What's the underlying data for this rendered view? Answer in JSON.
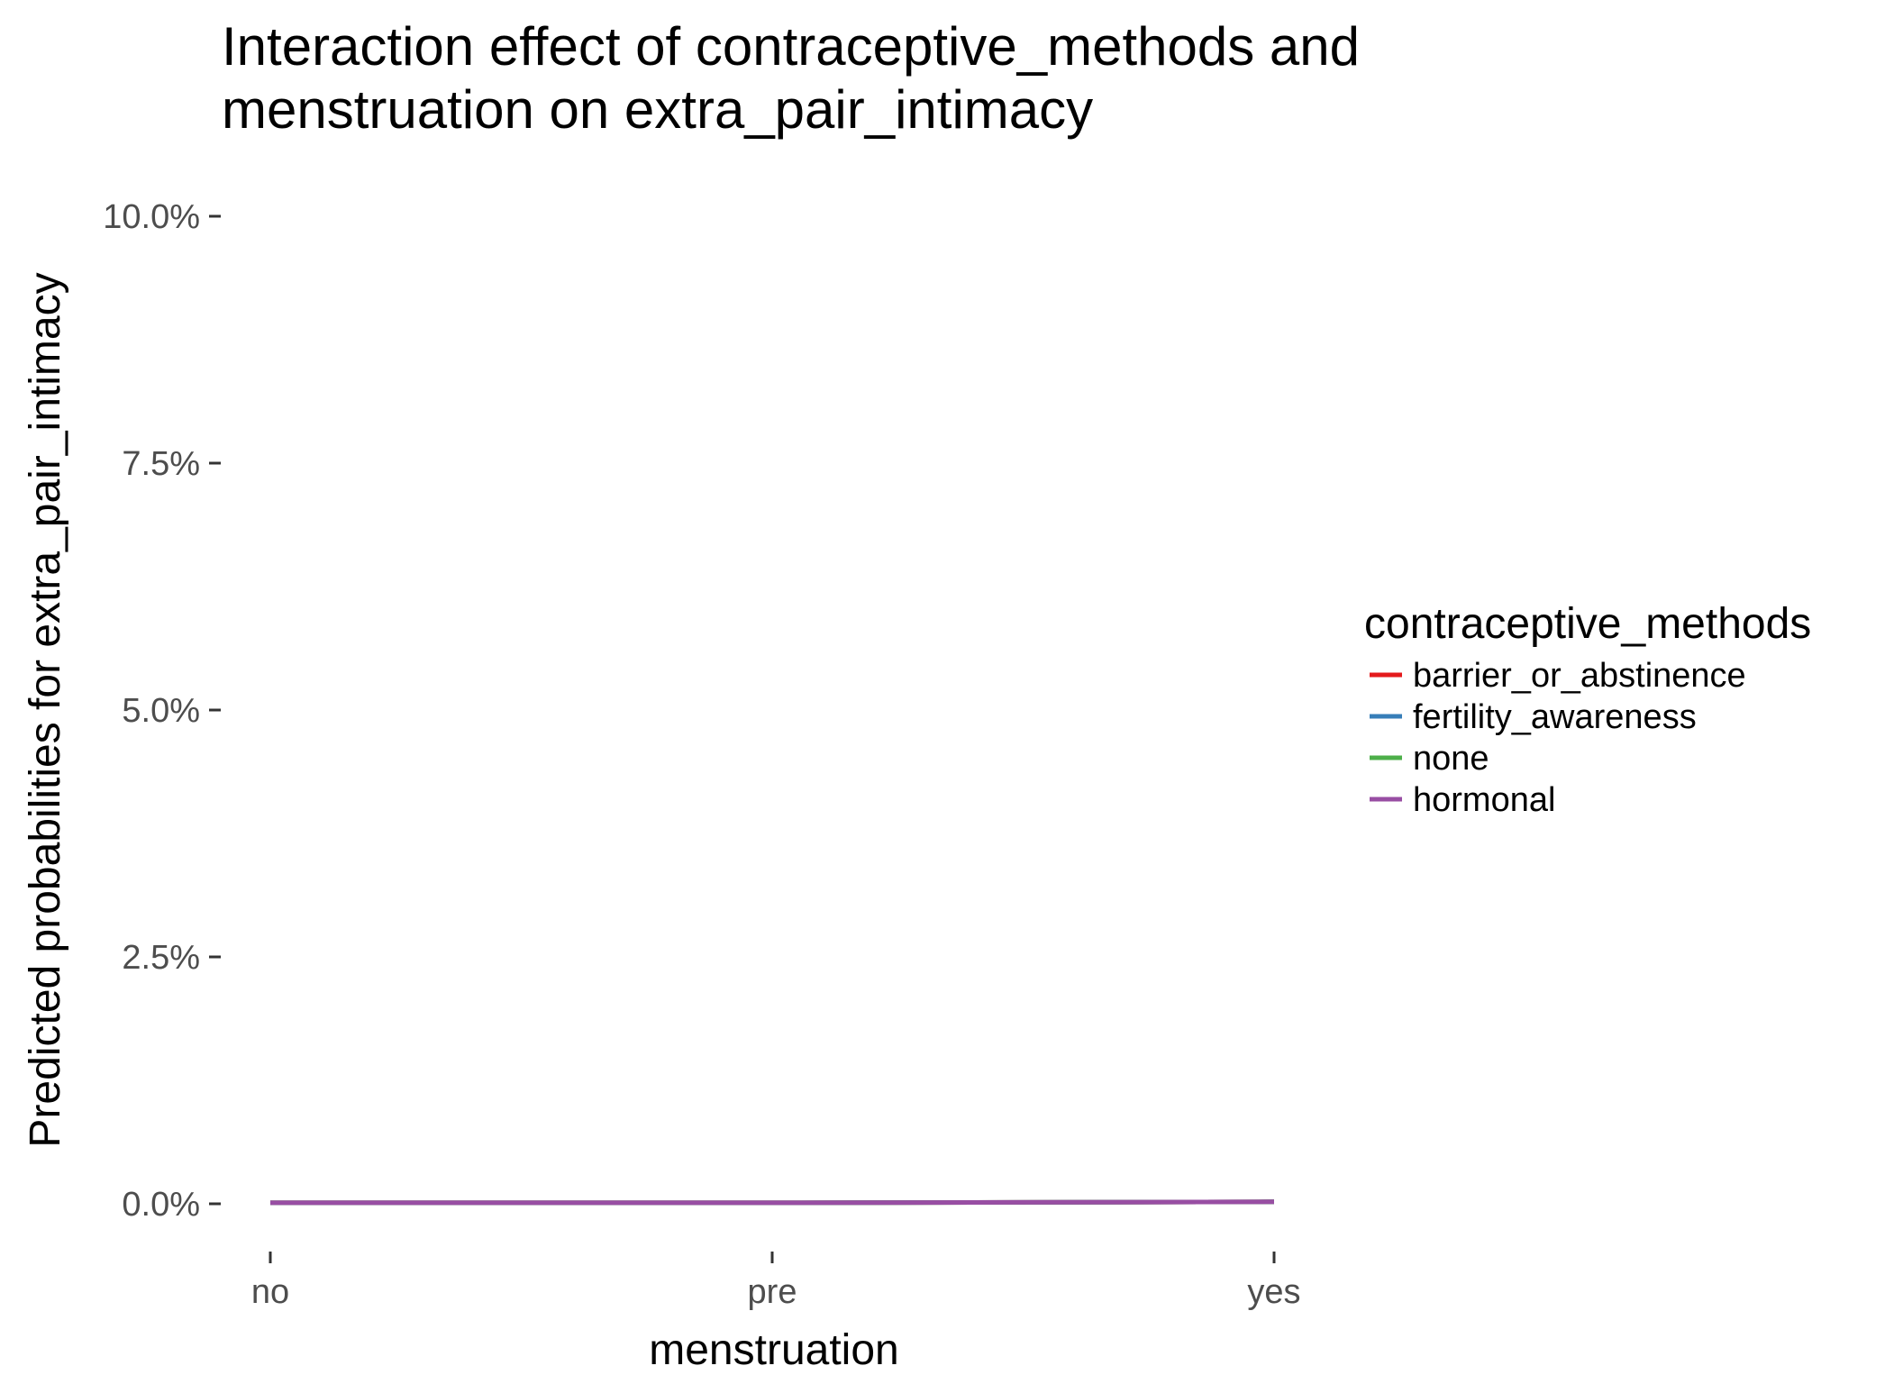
{
  "chart_data": {
    "type": "line",
    "title": "Interaction effect of contraceptive_methods and menstruation on extra_pair_intimacy",
    "title_lines": [
      "Interaction effect of contraceptive_methods and",
      "menstruation on extra_pair_intimacy"
    ],
    "xlabel": "menstruation",
    "ylabel": "Predicted probabilities for extra_pair_intimacy",
    "categories": [
      "no",
      "pre",
      "yes"
    ],
    "yticks": [
      0.0,
      0.025,
      0.05,
      0.075,
      0.1
    ],
    "ytick_labels": [
      "0.0%",
      "2.5%",
      "5.0%",
      "7.5%",
      "10.0%"
    ],
    "ylim": [
      0,
      0.1
    ],
    "grid": false,
    "legend": {
      "title": "contraceptive_methods",
      "placement": "right"
    },
    "series": [
      {
        "name": "barrier_or_abstinence",
        "color": "#E41A1C",
        "values": [
          0.0001,
          0.0001,
          0.0002
        ]
      },
      {
        "name": "fertility_awareness",
        "color": "#377EB8",
        "values": [
          0.0001,
          0.0001,
          0.0002
        ]
      },
      {
        "name": "none",
        "color": "#4DAF4A",
        "values": [
          0.0001,
          0.0001,
          0.0002
        ]
      },
      {
        "name": "hormonal",
        "color": "#984EA3",
        "values": [
          0.0001,
          0.0001,
          0.0002
        ]
      }
    ]
  }
}
